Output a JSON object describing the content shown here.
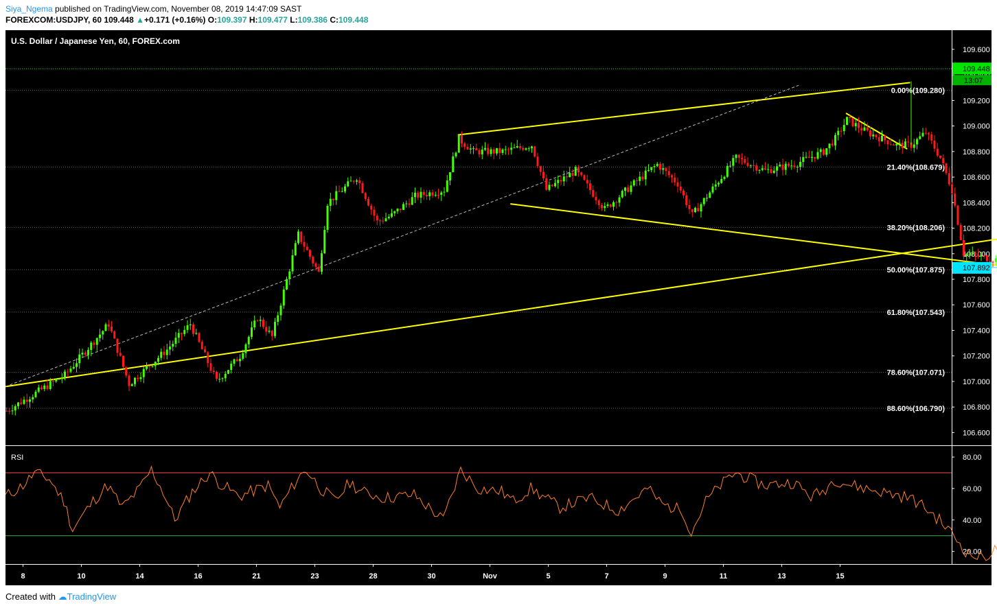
{
  "header": {
    "author": "Siya_Ngema",
    "published": "published on TradingView.com, November 08, 2019 14:47:09 SAST",
    "symbol": "FOREXCOM:USDJPY, 60",
    "last": "109.448",
    "change": "+0.171 (+0.16%)",
    "open_label": "O:",
    "open": "109.397",
    "high_label": "H:",
    "high": "109.477",
    "low_label": "L:",
    "low": "109.386",
    "close_label": "C:",
    "close": "109.448"
  },
  "footer": {
    "created_with": "Created with",
    "brand": "TradingView"
  },
  "colors": {
    "background": "#000000",
    "axis_text": "#ffffff",
    "up_candle": "#44ff00",
    "down_candle": "#ff1a1a",
    "trendline": "#ffff00",
    "rsi_line": "#ff7f27",
    "rsi_upper": "#ff4a4a",
    "rsi_lower": "#4caf50",
    "price_tag": "#00e600",
    "level_tag": "#00e5ff",
    "grid": "#666666"
  },
  "chart_data": [
    {
      "type": "candlestick",
      "title": "U.S. Dollar / Japanese Yen, 60, FOREX.com",
      "ylim": [
        106.5,
        109.75
      ],
      "y_ticks": [
        "106.600",
        "106.800",
        "107.000",
        "107.200",
        "107.400",
        "107.600",
        "107.800",
        "108.000",
        "108.200",
        "108.400",
        "108.600",
        "108.800",
        "109.000",
        "109.200",
        "109.400",
        "109.600"
      ],
      "x_ticks": [
        "8",
        "10",
        "14",
        "16",
        "21",
        "23",
        "28",
        "30",
        "Nov",
        "5",
        "7",
        "9",
        "11",
        "13",
        "15"
      ],
      "last_price": "109.448",
      "countdown": "13:07",
      "level_tag": "107.892",
      "fib_levels": [
        {
          "label": "0.00%(109.280)",
          "price": 109.28
        },
        {
          "label": "21.40%(108.679)",
          "price": 108.679
        },
        {
          "label": "38.20%(108.206)",
          "price": 108.206
        },
        {
          "label": "50.00%(107.875)",
          "price": 107.875
        },
        {
          "label": "61.80%(107.543)",
          "price": 107.543
        },
        {
          "label": "78.60%(107.071)",
          "price": 107.071
        },
        {
          "label": "88.60%(106.790)",
          "price": 106.79
        }
      ],
      "path_points": [
        [
          0,
          106.77
        ],
        [
          2,
          107.05
        ],
        [
          3.5,
          107.45
        ],
        [
          4.2,
          106.98
        ],
        [
          5.5,
          107.25
        ],
        [
          6.3,
          107.45
        ],
        [
          7.2,
          107.0
        ],
        [
          8,
          107.2
        ],
        [
          8.6,
          107.5
        ],
        [
          9.1,
          107.35
        ],
        [
          10,
          108.15
        ],
        [
          10.7,
          107.85
        ],
        [
          11,
          108.4
        ],
        [
          12,
          108.6
        ],
        [
          12.7,
          108.25
        ],
        [
          13.2,
          108.3
        ],
        [
          14,
          108.45
        ],
        [
          15,
          108.5
        ],
        [
          15.5,
          108.9
        ],
        [
          16,
          108.8
        ],
        [
          17,
          108.8
        ],
        [
          18,
          108.85
        ],
        [
          18.5,
          108.5
        ],
        [
          19.5,
          108.65
        ],
        [
          20.5,
          108.35
        ],
        [
          21.5,
          108.55
        ],
        [
          22.3,
          108.7
        ],
        [
          23,
          108.55
        ],
        [
          23.5,
          108.3
        ],
        [
          24,
          108.45
        ],
        [
          25,
          108.75
        ],
        [
          26,
          108.65
        ],
        [
          27,
          108.7
        ],
        [
          28,
          108.8
        ],
        [
          28.4,
          108.9
        ],
        [
          28.8,
          109.05
        ],
        [
          29.5,
          108.95
        ],
        [
          30.5,
          108.85
        ],
        [
          31,
          108.85
        ],
        [
          31.5,
          108.95
        ],
        [
          32,
          108.75
        ],
        [
          32.4,
          108.5
        ],
        [
          32.8,
          108.0
        ],
        [
          33.3,
          107.98
        ],
        [
          34,
          107.95
        ],
        [
          35,
          108.25
        ],
        [
          36,
          108.45
        ],
        [
          36.5,
          108.6
        ],
        [
          37,
          108.8
        ],
        [
          38,
          108.95
        ],
        [
          38.5,
          109.2
        ],
        [
          39,
          109.05
        ],
        [
          40,
          108.9
        ],
        [
          40.5,
          108.95
        ],
        [
          41,
          108.7
        ],
        [
          41.5,
          109.1
        ],
        [
          42,
          109.4
        ],
        [
          42.6,
          109.22
        ],
        [
          43,
          109.3
        ],
        [
          43.4,
          109.45
        ]
      ],
      "trendlines": [
        {
          "from": [
            15.5,
            108.93
          ],
          "to": [
            31,
            109.34
          ],
          "style": "solid"
        },
        {
          "from": [
            0,
            106.96
          ],
          "to": [
            48.3,
            108.6
          ],
          "style": "solid"
        },
        {
          "from": [
            17.3,
            108.39
          ],
          "to": [
            34.3,
            107.9
          ],
          "style": "solid"
        },
        {
          "from": [
            28.8,
            109.1
          ],
          "to": [
            30.9,
            108.82
          ],
          "style": "solid"
        },
        {
          "from": [
            0,
            106.96
          ],
          "to": [
            27.2,
            109.32
          ],
          "style": "dashed"
        }
      ]
    },
    {
      "type": "line",
      "title": "RSI",
      "ylim": [
        12,
        87
      ],
      "y_ticks": [
        "20.00",
        "40.00",
        "60.00",
        "80.00"
      ],
      "bands": [
        70,
        30
      ],
      "path_points": [
        [
          0,
          55
        ],
        [
          0.6,
          62
        ],
        [
          1,
          70
        ],
        [
          1.5,
          66
        ],
        [
          2,
          52
        ],
        [
          2.3,
          34
        ],
        [
          3,
          52
        ],
        [
          3.5,
          62
        ],
        [
          4,
          48
        ],
        [
          4.6,
          60
        ],
        [
          5,
          72
        ],
        [
          5.4,
          58
        ],
        [
          5.8,
          40
        ],
        [
          6.4,
          58
        ],
        [
          7,
          70
        ],
        [
          7.3,
          64
        ],
        [
          8,
          55
        ],
        [
          9,
          62
        ],
        [
          9.4,
          48
        ],
        [
          10,
          66
        ],
        [
          10.3,
          72
        ],
        [
          10.8,
          60
        ],
        [
          11.3,
          52
        ],
        [
          11.8,
          64
        ],
        [
          12.2,
          58
        ],
        [
          13,
          54
        ],
        [
          14,
          56
        ],
        [
          15,
          40
        ],
        [
          15.6,
          72
        ],
        [
          16.2,
          60
        ],
        [
          17,
          58
        ],
        [
          17.4,
          52
        ],
        [
          18,
          60
        ],
        [
          19,
          48
        ],
        [
          20,
          54
        ],
        [
          21,
          46
        ],
        [
          22,
          60
        ],
        [
          22.5,
          50
        ],
        [
          23.2,
          46
        ],
        [
          23.5,
          32
        ],
        [
          24,
          52
        ],
        [
          24.5,
          62
        ],
        [
          25,
          70
        ],
        [
          26,
          62
        ],
        [
          27,
          64
        ],
        [
          27.6,
          55
        ],
        [
          28,
          58
        ],
        [
          28.4,
          66
        ],
        [
          29,
          62
        ],
        [
          30,
          58
        ],
        [
          31,
          54
        ],
        [
          31.5,
          48
        ],
        [
          32,
          40
        ],
        [
          32.5,
          30
        ],
        [
          33,
          18
        ],
        [
          33.5,
          16
        ],
        [
          34,
          22
        ],
        [
          34.5,
          34
        ],
        [
          35,
          44
        ],
        [
          35.5,
          52
        ],
        [
          36,
          60
        ],
        [
          36.5,
          66
        ],
        [
          37,
          76
        ],
        [
          37.5,
          78
        ],
        [
          38,
          80
        ],
        [
          39,
          76
        ],
        [
          40,
          70
        ],
        [
          40.5,
          58
        ],
        [
          41,
          48
        ],
        [
          41.5,
          44
        ],
        [
          42,
          58
        ],
        [
          42.3,
          42
        ],
        [
          42.8,
          72
        ],
        [
          43.2,
          76
        ],
        [
          43.6,
          62
        ],
        [
          44,
          66
        ],
        [
          44.4,
          68
        ]
      ]
    }
  ]
}
